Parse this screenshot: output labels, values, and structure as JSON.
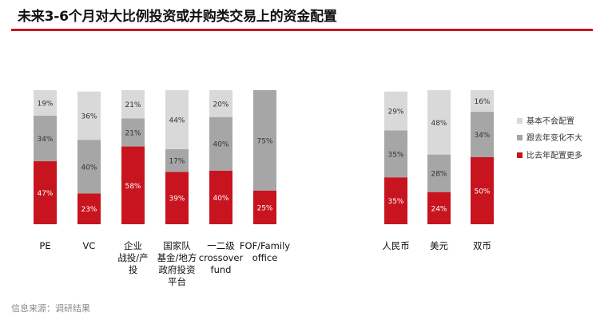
{
  "title": "未来3-6个月对大比例投资或并购类交易上的资金配置",
  "source_note": "信息来源：调研结果",
  "colors": {
    "accent": "#c8141e",
    "series": [
      "#c8141e",
      "#a6a6a6",
      "#d9d9d9"
    ]
  },
  "chart_data": [
    {
      "type": "bar",
      "stacked": true,
      "categories": [
        [
          "PE"
        ],
        [
          "VC"
        ],
        [
          "企业",
          "战投/产",
          "投"
        ],
        [
          "国家队",
          "基金/地方",
          "政府投资",
          "平台"
        ],
        [
          "一二级",
          "crossover",
          "fund"
        ],
        [
          "FOF/Family",
          "office"
        ]
      ],
      "series": [
        {
          "name": "比去年配置更多",
          "values": [
            47,
            23,
            58,
            39,
            40,
            25
          ],
          "labels": [
            "47%",
            "23%",
            "58%",
            "39%",
            "40%",
            "25%"
          ]
        },
        {
          "name": "跟去年变化不大",
          "values": [
            34,
            40,
            21,
            17,
            40,
            75
          ],
          "labels": [
            "34%",
            "40%",
            "21%",
            "17%",
            "40%",
            "75%"
          ]
        },
        {
          "name": "基本不会配置",
          "values": [
            19,
            36,
            21,
            44,
            20,
            0
          ],
          "labels": [
            "19%",
            "36%",
            "21%",
            "44%",
            "20%",
            ""
          ]
        }
      ],
      "ylim": [
        0,
        100
      ]
    },
    {
      "type": "bar",
      "stacked": true,
      "categories": [
        [
          "人民币"
        ],
        [
          "美元"
        ],
        [
          "双币"
        ]
      ],
      "series": [
        {
          "name": "比去年配置更多",
          "values": [
            35,
            24,
            50
          ],
          "labels": [
            "35%",
            "24%",
            "50%"
          ]
        },
        {
          "name": "跟去年变化不大",
          "values": [
            35,
            28,
            34
          ],
          "labels": [
            "35%",
            "28%",
            "34%"
          ]
        },
        {
          "name": "基本不会配置",
          "values": [
            29,
            48,
            16
          ],
          "labels": [
            "29%",
            "48%",
            "16%"
          ]
        }
      ],
      "ylim": [
        0,
        100
      ]
    }
  ],
  "legend": {
    "position": "right",
    "items": [
      "基本不会配置",
      "跟去年变化不大",
      "比去年配置更多"
    ],
    "colors": [
      "#d9d9d9",
      "#a6a6a6",
      "#c8141e"
    ]
  }
}
